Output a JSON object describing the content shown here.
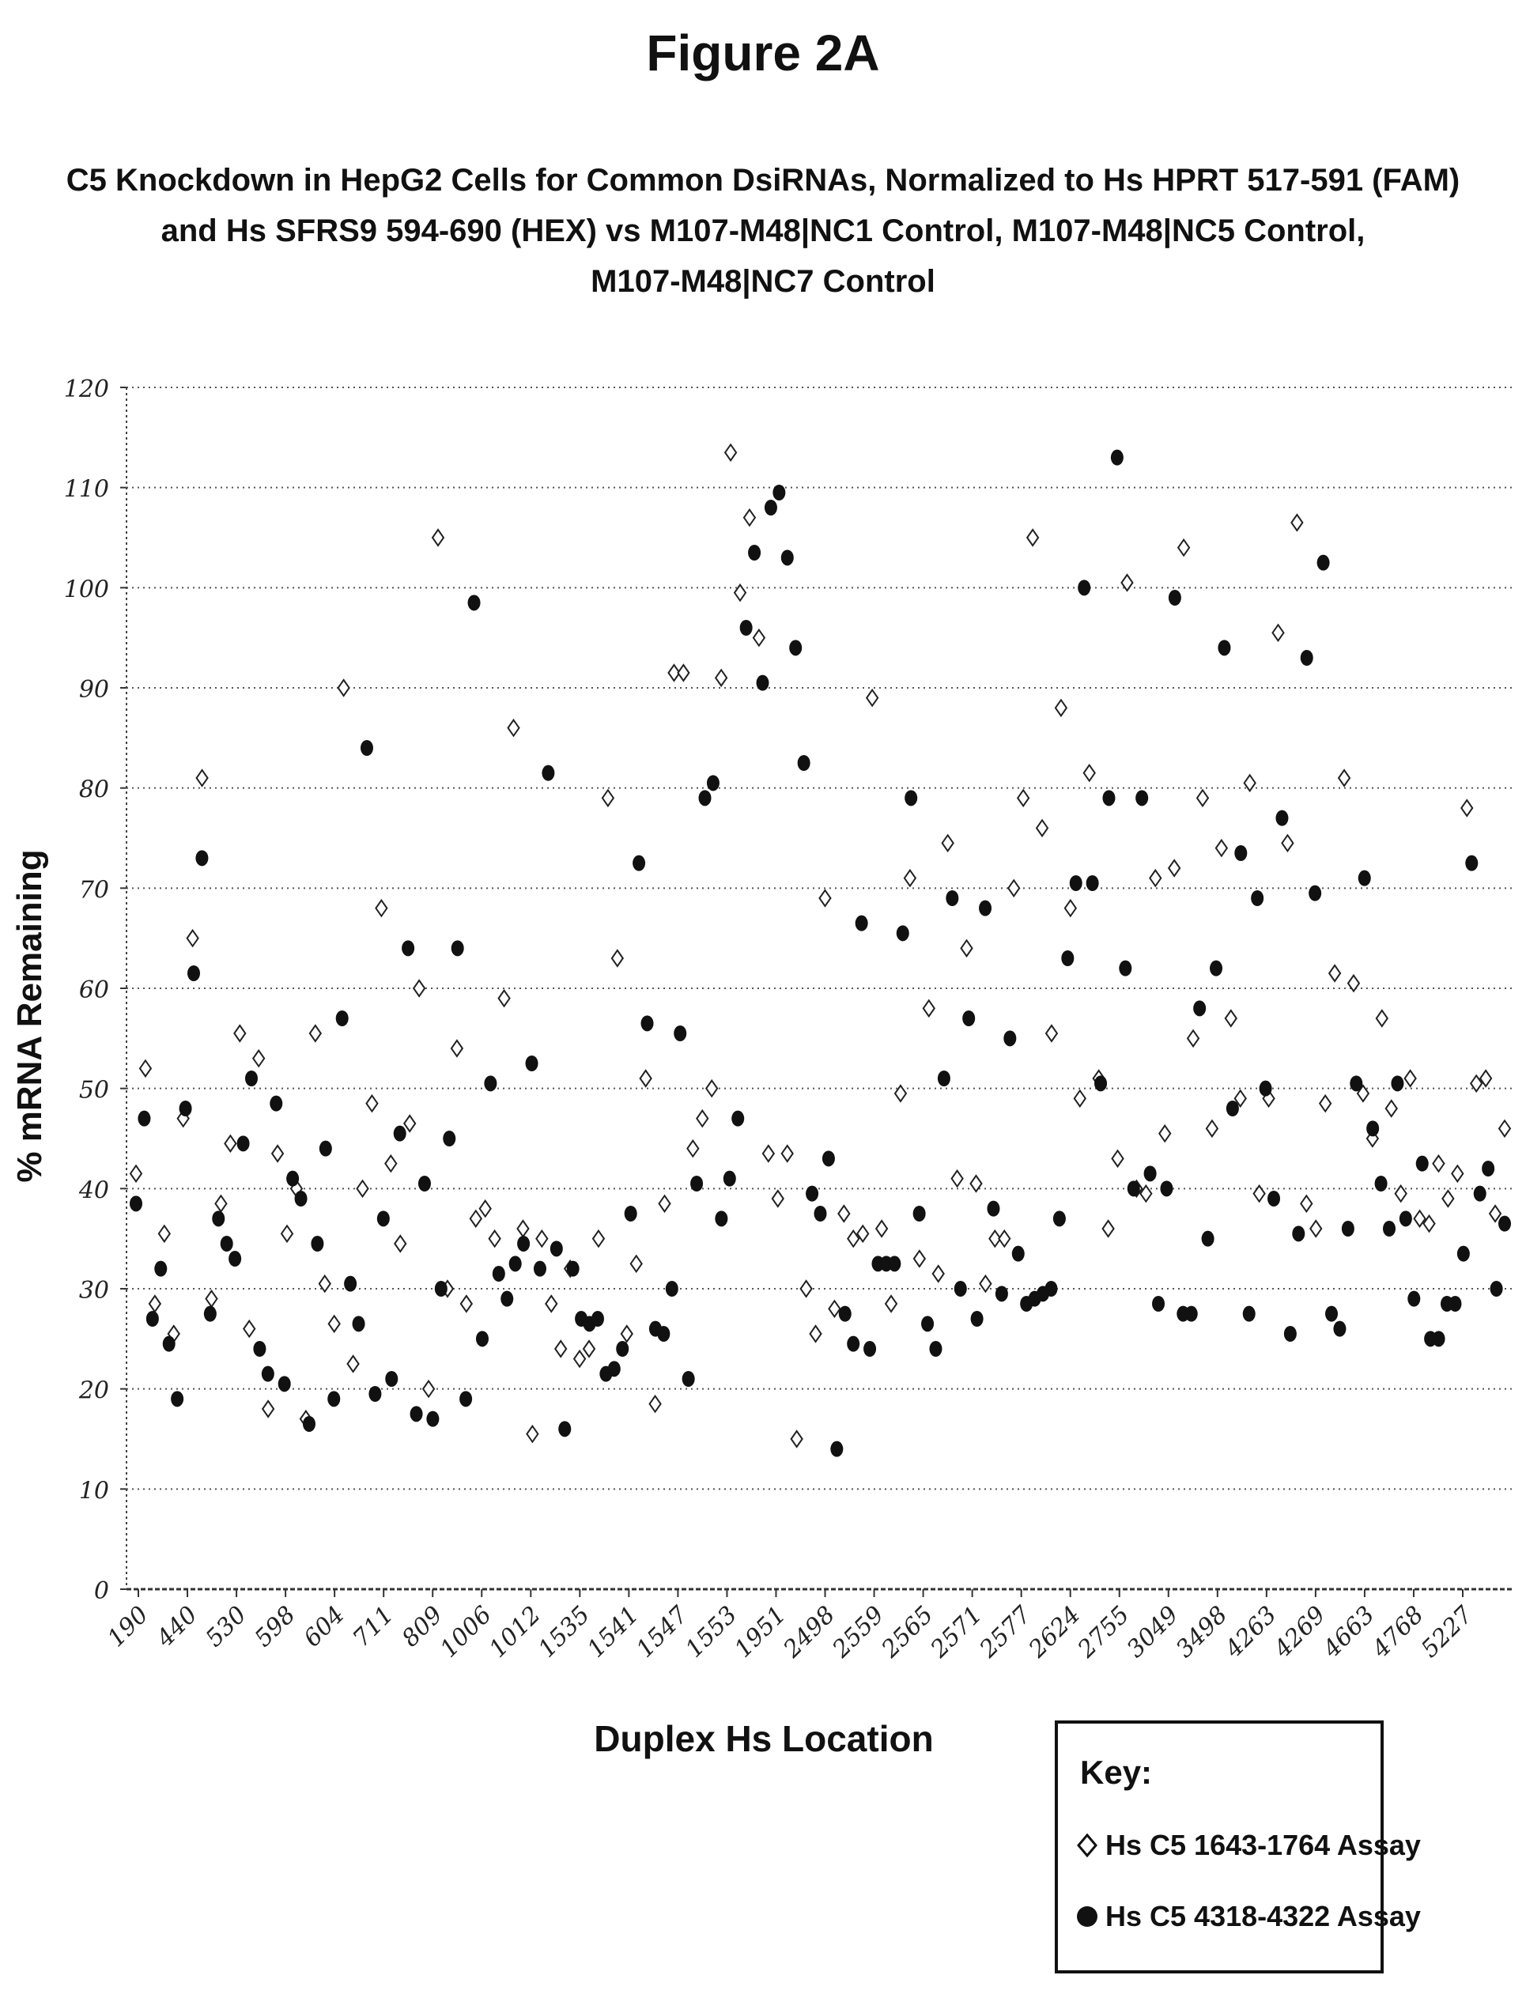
{
  "figure_label": "Figure 2A",
  "chart_data": {
    "type": "scatter",
    "title": [
      "C5 Knockdown in HepG2 Cells for Common DsiRNAs, Normalized to Hs HPRT 517-591 (FAM)",
      "and Hs SFRS9 594-690 (HEX) vs M107-M48|NC1 Control, M107-M48|NC5 Control,",
      "M107-M48|NC7 Control"
    ],
    "xlabel": "Duplex Hs Location",
    "ylabel": "% mRNA Remaining",
    "ylim": [
      0,
      120
    ],
    "yticks": [
      0,
      10,
      20,
      30,
      40,
      50,
      60,
      70,
      80,
      90,
      100,
      110,
      120
    ],
    "x_tick_labels": [
      "190",
      "440",
      "530",
      "598",
      "604",
      "711",
      "809",
      "1006",
      "1012",
      "1535",
      "1541",
      "1547",
      "1553",
      "1951",
      "2498",
      "2559",
      "2565",
      "2571",
      "2577",
      "2624",
      "2755",
      "3049",
      "3498",
      "4263",
      "4269",
      "4663",
      "4768",
      "5227"
    ],
    "grid": "horizontal dotted",
    "legend": {
      "title": "Key:",
      "placement": "bottom-right"
    },
    "series": [
      {
        "name": "Hs C5 1643-1764 Assay",
        "marker": "open-diamond",
        "values": [
          41.5,
          52,
          28.5,
          35.5,
          25.5,
          47,
          65,
          81,
          29,
          38.5,
          44.5,
          55.5,
          26,
          53,
          18,
          43.5,
          35.5,
          40,
          17,
          55.5,
          30.5,
          26.5,
          90,
          22.5,
          40,
          48.5,
          68,
          42.5,
          34.5,
          46.5,
          60,
          20,
          105,
          30,
          54,
          28.5,
          37,
          38,
          35,
          59,
          86,
          36,
          15.5,
          35,
          28.5,
          24,
          32,
          23,
          24,
          35,
          79,
          63,
          25.5,
          32.5,
          51,
          18.5,
          38.5,
          91.5,
          91.5,
          44,
          47,
          50,
          91,
          113.5,
          99.5,
          107,
          95,
          43.5,
          39,
          43.5,
          15,
          30,
          25.5,
          69,
          28,
          37.5,
          35,
          35.5,
          89,
          36,
          28.5,
          49.5,
          71,
          33,
          58,
          31.5,
          74.5,
          41,
          64,
          40.5,
          30.5,
          35,
          35,
          70,
          79,
          105,
          76,
          55.5,
          88,
          68,
          49,
          81.5,
          51,
          36,
          43,
          100.5,
          40,
          39.5,
          71,
          45.5,
          72,
          104,
          55,
          79,
          46,
          74,
          57,
          49,
          80.5,
          39.5,
          49,
          95.5,
          74.5,
          106.5,
          38.5,
          36,
          48.5,
          61.5,
          81,
          60.5,
          49.5,
          45,
          57,
          48,
          39.5,
          51,
          37,
          36.5,
          42.5,
          39,
          41.5,
          78,
          50.5,
          51,
          37.5,
          46
        ]
      },
      {
        "name": "Hs C5 4318-4322 Assay",
        "marker": "filled-circle",
        "values": [
          38.5,
          47,
          27,
          32,
          24.5,
          19,
          48,
          61.5,
          73,
          27.5,
          37,
          34.5,
          33,
          44.5,
          51,
          24,
          21.5,
          48.5,
          20.5,
          41,
          39,
          16.5,
          34.5,
          44,
          19,
          57,
          30.5,
          26.5,
          84,
          19.5,
          37,
          21,
          45.5,
          64,
          17.5,
          40.5,
          17,
          30,
          45,
          64,
          19,
          98.5,
          25,
          50.5,
          31.5,
          29,
          32.5,
          34.5,
          52.5,
          32,
          81.5,
          34,
          16,
          32,
          27,
          26.5,
          27,
          21.5,
          22,
          24,
          37.5,
          72.5,
          56.5,
          26,
          25.5,
          30,
          55.5,
          21,
          40.5,
          79,
          80.5,
          37,
          41,
          47,
          96,
          103.5,
          90.5,
          108,
          109.5,
          103,
          94,
          82.5,
          39.5,
          37.5,
          43,
          14,
          27.5,
          24.5,
          66.5,
          24,
          32.5,
          32.5,
          32.5,
          65.5,
          79,
          37.5,
          26.5,
          24,
          51,
          69,
          30,
          57,
          27,
          68,
          38,
          29.5,
          55,
          33.5,
          28.5,
          29,
          29.5,
          30,
          37,
          63,
          70.5,
          100,
          70.5,
          50.5,
          79,
          113,
          62,
          40,
          79,
          41.5,
          28.5,
          40,
          99,
          27.5,
          27.5,
          58,
          35,
          62,
          94,
          48,
          73.5,
          27.5,
          69,
          50,
          39,
          77,
          25.5,
          35.5,
          93,
          69.5,
          102.5,
          27.5,
          26,
          36,
          50.5,
          71,
          46,
          40.5,
          36,
          50.5,
          37,
          29,
          42.5,
          25,
          25,
          28.5,
          28.5,
          33.5,
          72.5,
          39.5,
          42,
          30,
          36.5
        ]
      }
    ]
  }
}
